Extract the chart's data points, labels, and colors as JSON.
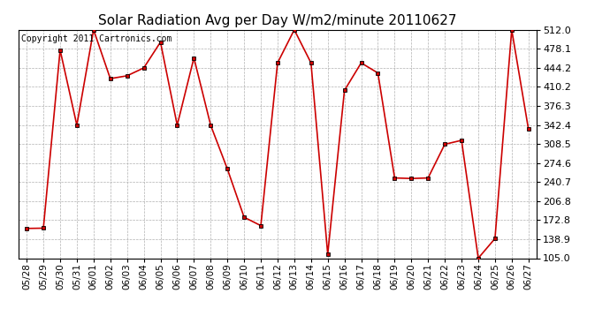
{
  "title": "Solar Radiation Avg per Day W/m2/minute 20110627",
  "copyright": "Copyright 2011 Cartronics.com",
  "dates": [
    "05/28",
    "05/29",
    "05/30",
    "05/31",
    "06/01",
    "06/02",
    "06/03",
    "06/04",
    "06/05",
    "06/06",
    "06/07",
    "06/08",
    "06/09",
    "06/10",
    "06/11",
    "06/12",
    "06/13",
    "06/14",
    "06/15",
    "06/16",
    "06/17",
    "06/18",
    "06/19",
    "06/20",
    "06/21",
    "06/22",
    "06/23",
    "06/24",
    "06/25",
    "06/26",
    "06/27"
  ],
  "values": [
    158.0,
    158.5,
    476.0,
    342.0,
    512.0,
    425.0,
    430.0,
    444.0,
    490.0,
    342.0,
    462.0,
    342.0,
    264.0,
    178.0,
    163.0,
    453.0,
    512.0,
    453.0,
    112.0,
    404.0,
    453.0,
    435.0,
    248.0,
    247.0,
    248.0,
    308.0,
    315.0,
    105.0,
    140.0,
    512.0,
    335.0
  ],
  "line_color": "#cc0000",
  "marker": "s",
  "marker_color": "#cc0000",
  "marker_size": 3,
  "ylim": [
    105.0,
    512.0
  ],
  "yticks": [
    105.0,
    138.9,
    172.8,
    206.8,
    240.7,
    274.6,
    308.5,
    342.4,
    376.3,
    410.2,
    444.2,
    478.1,
    512.0
  ],
  "bg_color": "#ffffff",
  "grid_color": "#b0b0b0",
  "title_fontsize": 11,
  "copyright_fontsize": 7,
  "tick_fontsize": 7.5,
  "ytick_fontsize": 8
}
